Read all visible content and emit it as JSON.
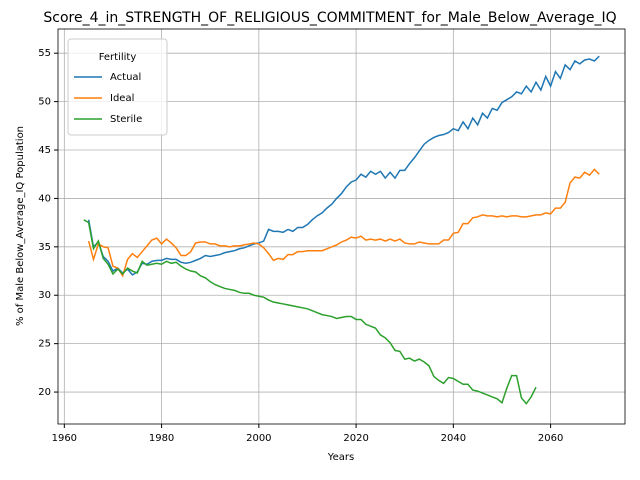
{
  "chart_data": {
    "type": "line",
    "title": "Score_4_in_STRENGTH_OF_RELIGIOUS_COMMITMENT_for_Male_Below_Average_IQ",
    "xlabel": "Years",
    "ylabel": "% of Male Below_Average_IQ Population",
    "legend_title": "Fertility",
    "legend": "upper left",
    "grid": true,
    "x": [
      1964,
      1965,
      1966,
      1967,
      1968,
      1969,
      1970,
      1971,
      1972,
      1973,
      1974,
      1975,
      1976,
      1977,
      1978,
      1979,
      1980,
      1981,
      1982,
      1983,
      1984,
      1985,
      1986,
      1987,
      1988,
      1989,
      1990,
      1991,
      1992,
      1993,
      1994,
      1995,
      1996,
      1997,
      1998,
      1999,
      2000,
      2001,
      2002,
      2003,
      2004,
      2005,
      2006,
      2007,
      2008,
      2009,
      2010,
      2011,
      2012,
      2013,
      2014,
      2015,
      2016,
      2017,
      2018,
      2019,
      2020,
      2021,
      2022,
      2023,
      2024,
      2025,
      2026,
      2027,
      2028,
      2029,
      2030,
      2031,
      2032,
      2033,
      2034,
      2035,
      2036,
      2037,
      2038,
      2039,
      2040,
      2041,
      2042,
      2043,
      2044,
      2045,
      2046,
      2047,
      2048,
      2049,
      2050,
      2051,
      2052,
      2053,
      2054,
      2055,
      2056,
      2057,
      2058,
      2059,
      2060,
      2061,
      2062,
      2063,
      2064,
      2065,
      2066,
      2067,
      2068,
      2069,
      2070
    ],
    "series": [
      {
        "name": "Actual",
        "color": "#1f77b4",
        "values": [
          null,
          37.8,
          35.0,
          35.5,
          34.0,
          33.5,
          32.5,
          32.8,
          32.3,
          32.7,
          32.1,
          32.4,
          33.3,
          33.2,
          33.5,
          33.6,
          33.6,
          33.8,
          33.7,
          33.7,
          33.4,
          33.3,
          33.4,
          33.6,
          33.8,
          34.1,
          34.0,
          34.1,
          34.2,
          34.4,
          34.5,
          34.6,
          34.8,
          34.9,
          35.1,
          35.3,
          35.4,
          35.6,
          36.8,
          36.6,
          36.6,
          36.5,
          36.8,
          36.6,
          37.0,
          37.0,
          37.3,
          37.8,
          38.2,
          38.5,
          39.0,
          39.4,
          40.0,
          40.5,
          41.2,
          41.7,
          41.9,
          42.5,
          42.2,
          42.8,
          42.5,
          42.8,
          42.1,
          42.7,
          42.1,
          42.9,
          42.9,
          43.6,
          44.2,
          44.9,
          45.6,
          46.0,
          46.3,
          46.5,
          46.6,
          46.8,
          47.2,
          47.0,
          47.9,
          47.2,
          48.3,
          47.6,
          48.8,
          48.3,
          49.3,
          49.1,
          49.9,
          50.2,
          50.5,
          51.0,
          50.8,
          51.6,
          51.0,
          52.0,
          51.2,
          52.6,
          51.6,
          53.1,
          52.4,
          53.8,
          53.3,
          54.2,
          53.9,
          54.3,
          54.4,
          54.2,
          54.7
        ]
      },
      {
        "name": "Ideal",
        "color": "#ff7f0e",
        "values": [
          null,
          35.6,
          33.7,
          35.3,
          35.0,
          34.9,
          33.0,
          32.8,
          32.0,
          33.7,
          34.3,
          33.9,
          34.5,
          35.1,
          35.7,
          35.9,
          35.3,
          35.8,
          35.4,
          34.9,
          34.1,
          34.1,
          34.5,
          35.4,
          35.5,
          35.5,
          35.3,
          35.3,
          35.1,
          35.1,
          35.0,
          35.1,
          35.1,
          35.2,
          35.3,
          35.4,
          35.3,
          34.9,
          34.3,
          33.6,
          33.8,
          33.7,
          34.2,
          34.2,
          34.5,
          34.5,
          34.6,
          34.6,
          34.6,
          34.6,
          34.8,
          35.0,
          35.2,
          35.5,
          35.7,
          36.0,
          35.9,
          36.1,
          35.7,
          35.8,
          35.7,
          35.8,
          35.6,
          35.8,
          35.6,
          35.8,
          35.4,
          35.3,
          35.3,
          35.5,
          35.4,
          35.3,
          35.3,
          35.3,
          35.7,
          35.7,
          36.4,
          36.5,
          37.4,
          37.4,
          38.0,
          38.1,
          38.3,
          38.2,
          38.2,
          38.1,
          38.2,
          38.1,
          38.2,
          38.2,
          38.1,
          38.1,
          38.2,
          38.3,
          38.3,
          38.5,
          38.4,
          39.0,
          39.0,
          39.6,
          41.6,
          42.2,
          42.1,
          42.7,
          42.4,
          43.0,
          42.5
        ]
      },
      {
        "name": "Sterile",
        "color": "#2ca02c",
        "values": [
          37.8,
          37.5,
          34.8,
          35.6,
          33.8,
          33.2,
          32.2,
          32.7,
          32.2,
          32.8,
          32.5,
          32.3,
          33.5,
          33.1,
          33.2,
          33.3,
          33.2,
          33.5,
          33.3,
          33.4,
          33.0,
          32.7,
          32.5,
          32.4,
          32.0,
          31.8,
          31.4,
          31.1,
          30.9,
          30.7,
          30.6,
          30.5,
          30.3,
          30.2,
          30.2,
          30.0,
          29.9,
          29.8,
          29.5,
          29.3,
          29.2,
          29.1,
          29.0,
          28.9,
          28.8,
          28.7,
          28.6,
          28.4,
          28.2,
          28.0,
          27.9,
          27.8,
          27.6,
          27.7,
          27.8,
          27.8,
          27.5,
          27.5,
          27.0,
          26.8,
          26.6,
          25.9,
          25.6,
          25.1,
          24.3,
          24.2,
          23.4,
          23.5,
          23.2,
          23.4,
          23.1,
          22.7,
          21.6,
          21.2,
          20.9,
          21.5,
          21.4,
          21.1,
          20.8,
          20.8,
          20.2,
          20.1,
          19.9,
          19.7,
          19.5,
          19.3,
          18.9,
          20.4,
          21.7,
          21.7,
          19.4,
          18.8,
          19.5,
          20.5,
          null,
          null,
          null,
          null,
          null,
          null,
          null,
          null,
          null,
          null,
          null,
          null,
          null
        ]
      }
    ],
    "xlim": [
      1958.7,
      2075.3
    ],
    "ylim": [
      16.7,
      57.5
    ],
    "xticks": [
      1960,
      1980,
      2000,
      2020,
      2040,
      2060
    ],
    "yticks": [
      20,
      25,
      30,
      35,
      40,
      45,
      50,
      55
    ]
  }
}
